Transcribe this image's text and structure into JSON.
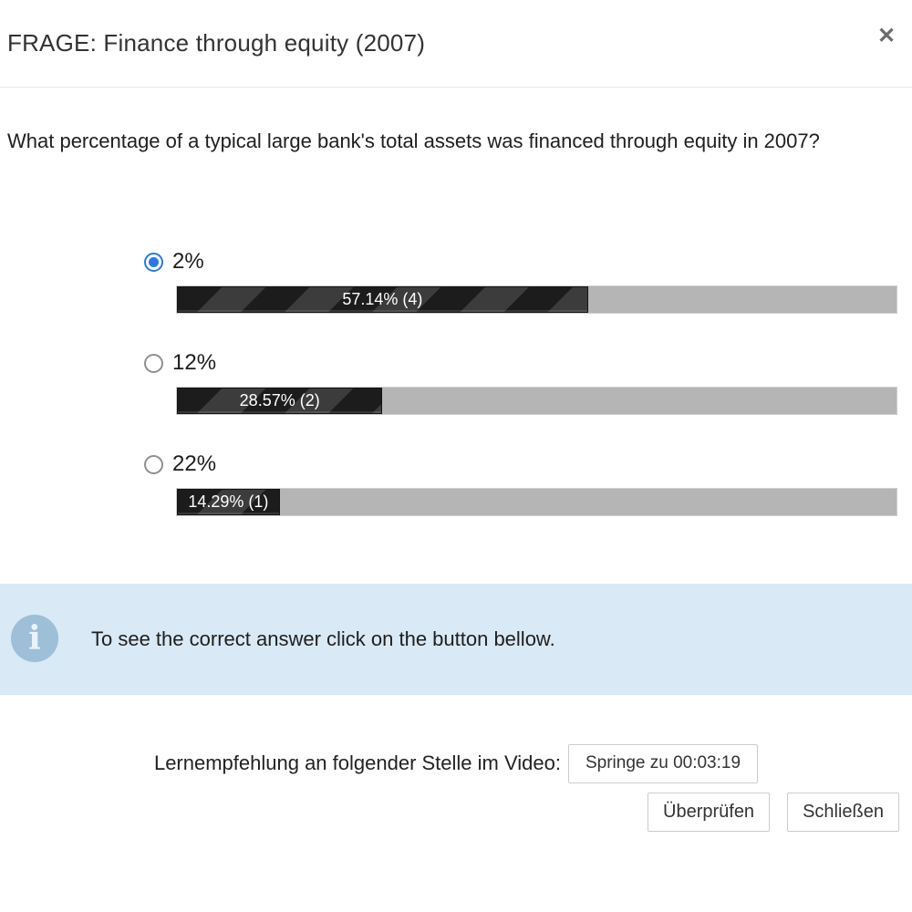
{
  "modal": {
    "title": "FRAGE: Finance through equity (2007)",
    "close_icon": "✕"
  },
  "question": {
    "text": "What percentage of a typical large bank's total assets was financed through equity in 2007?"
  },
  "options": [
    {
      "label": "2%",
      "selected": true,
      "result_text": "57.14% (4)",
      "percent": 57.14,
      "votes": 4
    },
    {
      "label": "12%",
      "selected": false,
      "result_text": "28.57% (2)",
      "percent": 28.57,
      "votes": 2
    },
    {
      "label": "22%",
      "selected": false,
      "result_text": "14.29% (1)",
      "percent": 14.29,
      "votes": 1
    }
  ],
  "info": {
    "icon": "i",
    "text": "To see the correct answer click on the button bellow."
  },
  "footer": {
    "recommendation_label": "Lernempfehlung an folgender Stelle im Video:",
    "jump_button_label": "Springe zu 00:03:19",
    "check_button_label": "Überprüfen",
    "close_button_label": "Schließen"
  },
  "colors": {
    "accent_blue": "#2779e3",
    "bar_stripe_dark": "#1c1c1c",
    "bar_stripe_light": "#3c3c3c",
    "bar_track": "#b5b5b5",
    "info_background": "#d9e9f5",
    "info_icon_background": "#9dbfd7"
  }
}
